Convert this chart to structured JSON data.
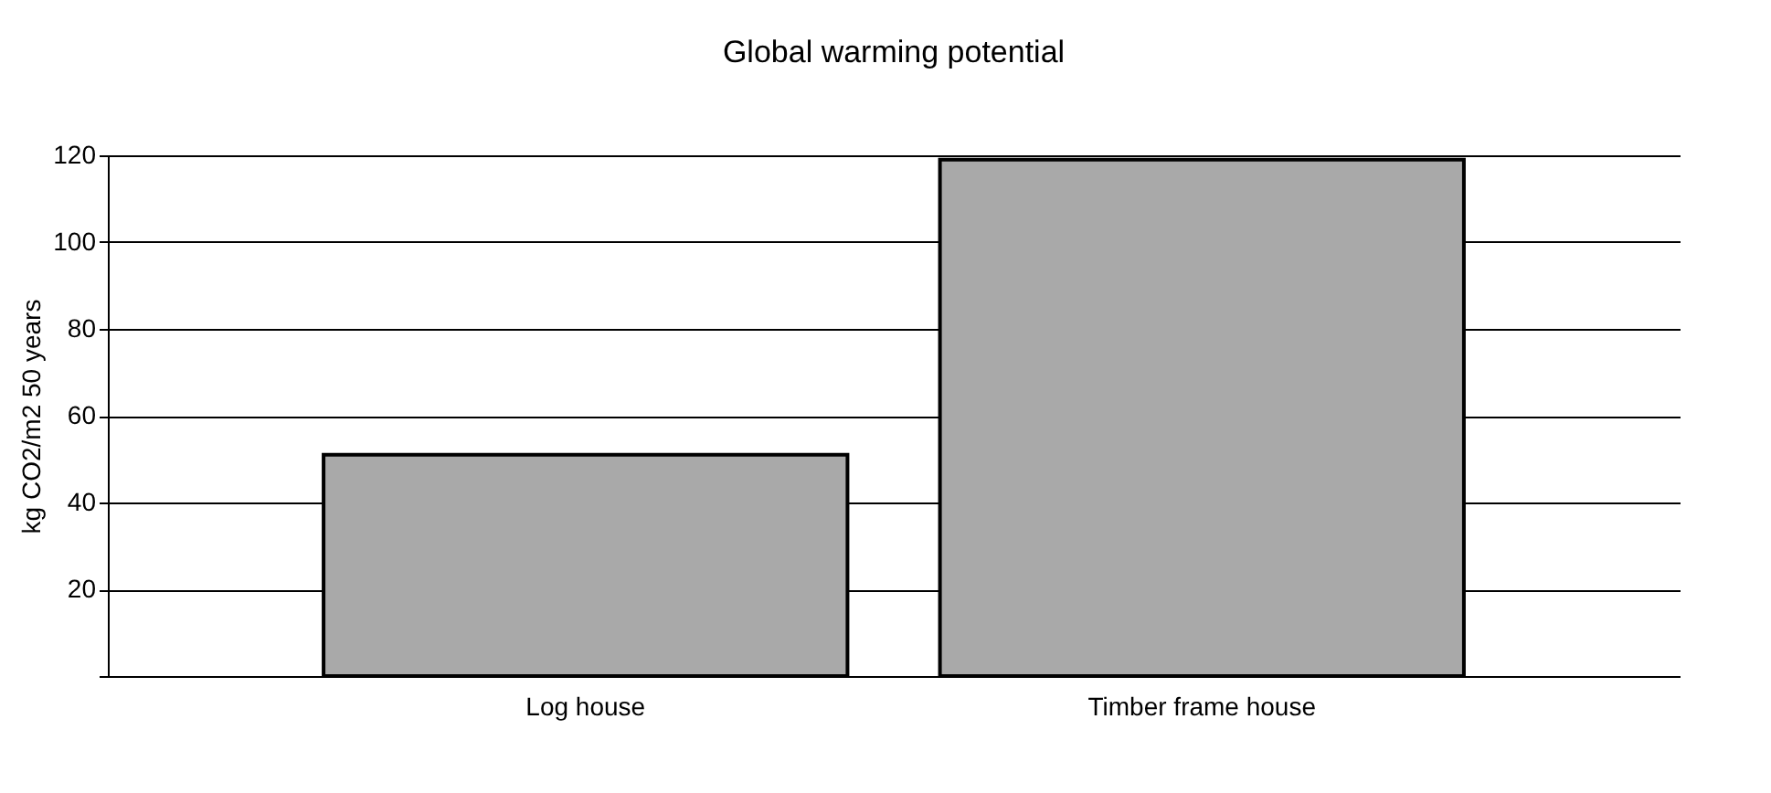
{
  "chart_data": {
    "type": "bar",
    "title": "Global warming potential",
    "ylabel": "kg CO2/m2 50 years",
    "categories": [
      "Log house",
      "Timber frame house"
    ],
    "values": [
      51,
      119
    ],
    "color": "#a9a9a9",
    "ylim": [
      0,
      120
    ],
    "yticks": [
      {
        "value": 0,
        "label": null
      },
      20,
      40,
      60,
      80,
      100,
      120
    ],
    "grid": "y"
  }
}
